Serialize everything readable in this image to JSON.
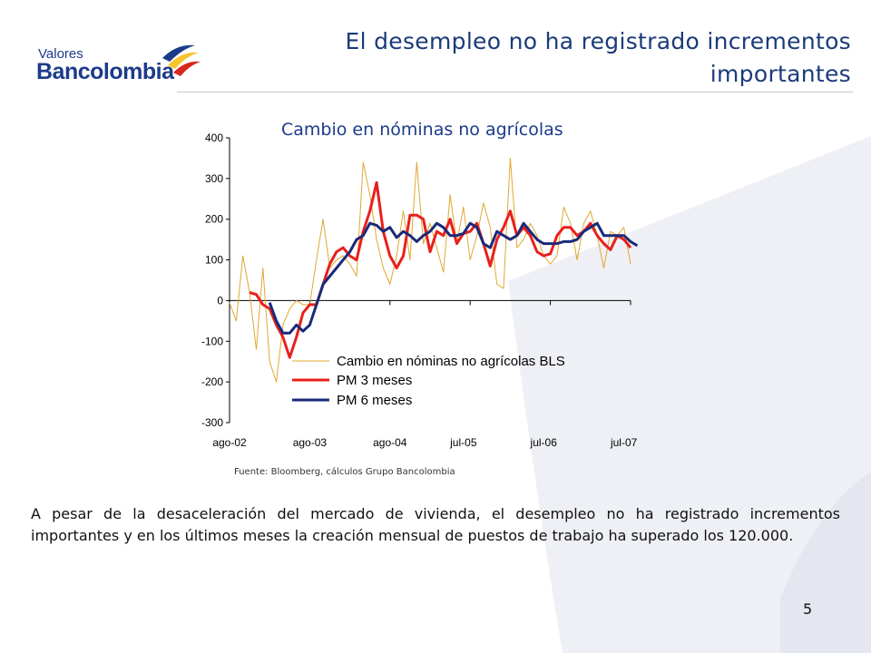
{
  "brand": {
    "small": "Valores",
    "big": "Bancolombia"
  },
  "header": {
    "title_line1": "El desempleo no ha registrado incrementos",
    "title_line2": "importantes"
  },
  "chart_title": "Cambio en nóminas no agrícolas",
  "source": "Fuente: Bloomberg, cálculos Grupo Bancolombia",
  "body": "A pesar de la desaceleración del mercado de vivienda, el desempleo no ha registrado incrementos importantes y en los últimos meses la creación mensual de puestos de trabajo ha superado los 120.000.",
  "page_number": "5",
  "colors": {
    "brand_blue": "#1b3b8a",
    "raw": "#e0a832",
    "pm3": "#e8201c",
    "pm6": "#1a2a7a",
    "accent_yellow": "#f7c42b",
    "accent_red": "#d6281e"
  },
  "chart_data": {
    "type": "line",
    "title": "Cambio en nóminas no agrícolas",
    "ylim": [
      -300,
      400
    ],
    "yticks": [
      400,
      300,
      200,
      100,
      0,
      -100,
      -200,
      -300
    ],
    "x_tick_labels": [
      "ago-02",
      "ago-03",
      "ago-04",
      "jul-05",
      "jul-06",
      "jul-07"
    ],
    "x_tick_index": [
      0,
      12,
      24,
      35,
      47,
      59
    ],
    "grid": false,
    "legend_position": "bottom-center",
    "series": [
      {
        "name": "Cambio en nóminas no agrícolas BLS",
        "color": "#e0a832",
        "width": 1,
        "start": 0,
        "values": [
          -5,
          -50,
          110,
          20,
          -120,
          80,
          -150,
          -200,
          -60,
          -20,
          0,
          -10,
          -10,
          100,
          200,
          80,
          100,
          110,
          90,
          60,
          340,
          260,
          150,
          80,
          40,
          110,
          220,
          100,
          340,
          140,
          190,
          130,
          70,
          260,
          140,
          230,
          100,
          160,
          240,
          180,
          40,
          30,
          350,
          130,
          150,
          190,
          160,
          110,
          90,
          110,
          230,
          190,
          100,
          190,
          220,
          160,
          80,
          170,
          160,
          180,
          90
        ]
      },
      {
        "name": "PM 3 meses",
        "color": "#e8201c",
        "width": 3,
        "start": 3,
        "values": [
          20,
          15,
          -10,
          -20,
          -60,
          -90,
          -140,
          -90,
          -30,
          -10,
          -10,
          40,
          90,
          120,
          130,
          110,
          100,
          170,
          220,
          290,
          170,
          110,
          80,
          110,
          210,
          210,
          200,
          120,
          170,
          160,
          200,
          140,
          165,
          170,
          190,
          140,
          85,
          150,
          180,
          220,
          160,
          180,
          160,
          120,
          110,
          115,
          160,
          180,
          180,
          160,
          170,
          190,
          160,
          140,
          125,
          160,
          150,
          130
        ]
      },
      {
        "name": "PM 6 meses",
        "color": "#1a2a7a",
        "width": 3,
        "start": 6,
        "values": [
          -5,
          -50,
          -80,
          -80,
          -60,
          -75,
          -60,
          -10,
          40,
          60,
          80,
          100,
          120,
          150,
          160,
          190,
          185,
          170,
          180,
          155,
          170,
          160,
          145,
          160,
          170,
          190,
          180,
          160,
          160,
          165,
          190,
          180,
          140,
          130,
          170,
          160,
          150,
          160,
          190,
          170,
          150,
          140,
          140,
          140,
          145,
          145,
          150,
          170,
          180,
          190,
          160,
          160,
          160,
          160,
          145,
          135
        ]
      }
    ]
  }
}
